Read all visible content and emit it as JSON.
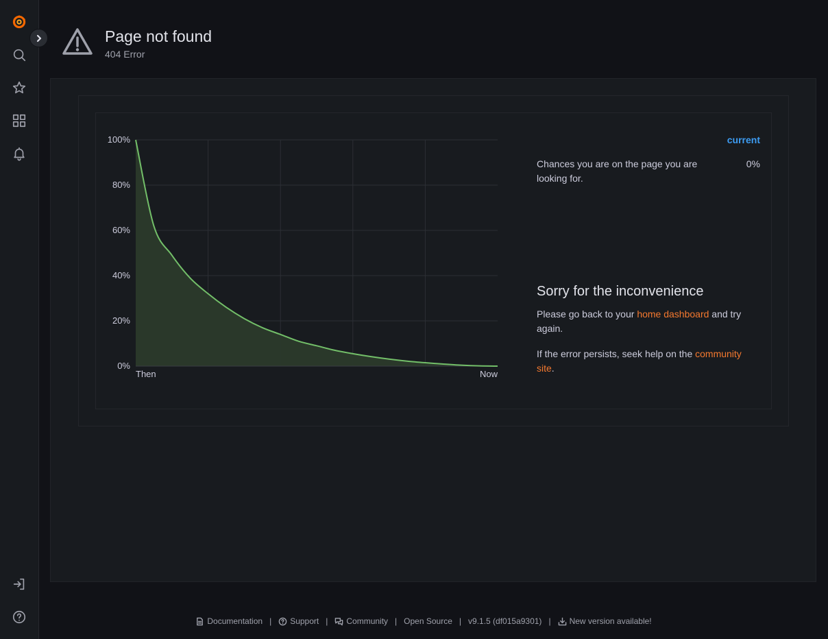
{
  "header": {
    "title": "Page not found",
    "subtitle": "404 Error"
  },
  "sidebar": {
    "items": [
      {
        "name": "grafana-logo-icon"
      },
      {
        "name": "search-icon"
      },
      {
        "name": "star-icon"
      },
      {
        "name": "dashboards-grid-icon"
      },
      {
        "name": "bell-icon"
      }
    ],
    "bottom": [
      {
        "name": "sign-in-icon"
      },
      {
        "name": "help-icon"
      }
    ]
  },
  "legend": {
    "header": "current",
    "label": "Chances you are on the page you are looking for.",
    "value": "0%"
  },
  "message": {
    "title": "Sorry for the inconvenience",
    "line1_pre": "Please go back to your ",
    "line1_link": "home dashboard",
    "line1_post": " and try again.",
    "line2_pre": "If the error persists, seek help on the ",
    "line2_link": "community site",
    "line2_post": "."
  },
  "footer": {
    "documentation": "Documentation",
    "support": "Support",
    "community": "Community",
    "open_source": "Open Source",
    "version": "v9.1.5 (df015a9301)",
    "new_version": "New version available!",
    "separator": "|"
  },
  "colors": {
    "accent_link": "#f5792f",
    "legend_header": "#3d9cf2",
    "series_line": "#73bf69",
    "logo": "#f46800"
  },
  "chart_data": {
    "type": "area",
    "x_labels": [
      "Then",
      "Now"
    ],
    "y_ticks": [
      "0%",
      "20%",
      "40%",
      "60%",
      "80%",
      "100%"
    ],
    "ylim": [
      0,
      100
    ],
    "x": [
      0,
      1,
      2,
      3,
      4,
      5,
      6,
      7,
      8,
      9,
      10,
      11,
      12,
      13,
      14,
      15,
      16,
      17,
      18,
      19,
      20
    ],
    "series": [
      {
        "values": [
          100,
          62,
          49,
          39,
          32,
          26,
          21,
          17,
          14,
          11,
          9,
          7,
          5.5,
          4.2,
          3.1,
          2.2,
          1.5,
          0.9,
          0.4,
          0.1,
          0
        ]
      }
    ],
    "grid": true
  }
}
